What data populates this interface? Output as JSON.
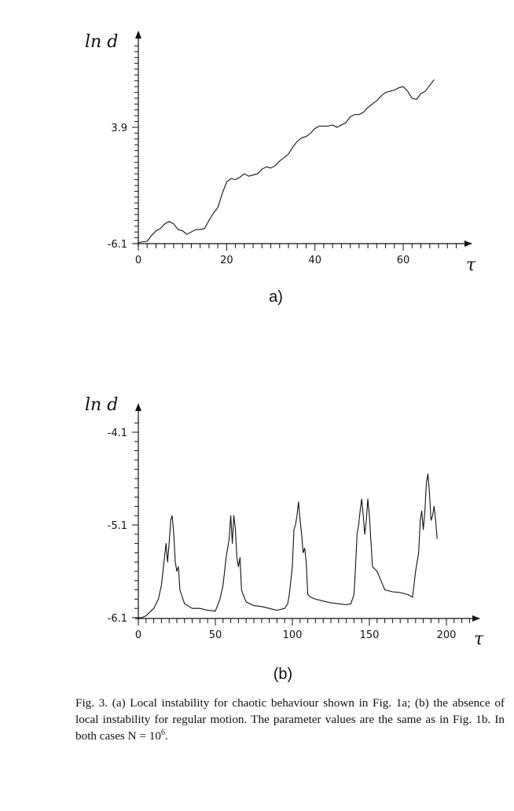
{
  "chart_data": [
    {
      "type": "line",
      "panel_label": "a)",
      "ylabel": "ln d",
      "xlabel": "τ",
      "xlim": [
        0,
        68
      ],
      "ylim": [
        -6.1,
        9.0
      ],
      "x_tick_labels": [
        "0",
        "20",
        "40",
        "60"
      ],
      "x_tick_values": [
        0,
        20,
        40,
        60
      ],
      "y_tick_labels": [
        "-6.1",
        "3.9"
      ],
      "y_tick_values": [
        -6.1,
        3.9
      ],
      "grid": false,
      "series": [
        {
          "x": [
            0,
            2,
            3,
            4,
            5,
            6,
            7,
            8,
            9,
            10,
            11,
            12,
            13,
            14,
            15,
            16,
            17,
            18,
            19,
            20,
            21,
            22,
            23,
            24,
            25,
            26,
            27,
            28,
            29,
            30,
            31,
            32,
            33,
            34,
            35,
            36,
            37,
            38,
            39,
            40,
            41,
            42,
            43,
            44,
            45,
            46,
            47,
            48,
            49,
            50,
            51,
            52,
            53,
            54,
            55,
            56,
            57,
            58,
            59,
            60,
            61,
            62,
            63,
            64,
            65,
            66,
            67
          ],
          "y": [
            -6.0,
            -5.9,
            -5.4,
            -5.0,
            -4.8,
            -4.4,
            -4.2,
            -4.4,
            -4.9,
            -5.0,
            -5.3,
            -5.1,
            -4.9,
            -4.9,
            -4.8,
            -4.1,
            -3.5,
            -3.0,
            -1.8,
            -0.8,
            -0.5,
            -0.6,
            -0.4,
            -0.1,
            -0.3,
            -0.2,
            -0.1,
            0.3,
            0.5,
            0.4,
            0.6,
            1.0,
            1.3,
            1.6,
            2.2,
            2.7,
            3.0,
            3.1,
            3.4,
            3.8,
            4.0,
            4.0,
            4.0,
            4.1,
            3.9,
            4.1,
            4.3,
            4.8,
            5.0,
            5.0,
            5.2,
            5.6,
            5.9,
            6.2,
            6.6,
            6.9,
            7.0,
            7.1,
            7.3,
            7.4,
            7.0,
            6.4,
            6.3,
            6.8,
            7.0,
            7.5,
            8.0
          ]
        }
      ]
    },
    {
      "type": "line",
      "panel_label": "(b)",
      "ylabel": "ln d",
      "xlabel": "τ",
      "xlim": [
        0,
        205
      ],
      "ylim": [
        -6.1,
        -4.0
      ],
      "x_tick_labels": [
        "0",
        "50",
        "100",
        "150",
        "200"
      ],
      "x_tick_values": [
        0,
        50,
        100,
        150,
        200
      ],
      "y_tick_labels": [
        "-4.1",
        "-5.1",
        "-6.1"
      ],
      "y_tick_values": [
        -4.1,
        -5.1,
        -6.1
      ],
      "grid": false,
      "series": [
        {
          "x": [
            0,
            2,
            5,
            10,
            13,
            15,
            17,
            18,
            19,
            20,
            21,
            22,
            23,
            24,
            25,
            26,
            27,
            28,
            30,
            35,
            40,
            45,
            50,
            53,
            55,
            57,
            59,
            60,
            61,
            62,
            63,
            64,
            65,
            66,
            67,
            68,
            70,
            75,
            80,
            85,
            90,
            95,
            97,
            98,
            100,
            101,
            102,
            103,
            104,
            105,
            106,
            107,
            108,
            109,
            110,
            112,
            115,
            120,
            125,
            130,
            135,
            138,
            140,
            141,
            142,
            143,
            144,
            145,
            146,
            147,
            148,
            149,
            150,
            152,
            155,
            160,
            165,
            170,
            175,
            178,
            180,
            182,
            183,
            184,
            185,
            186,
            187,
            188,
            189,
            190,
            191,
            192,
            193,
            194
          ],
          "y": [
            -6.1,
            -6.1,
            -6.08,
            -6.0,
            -5.9,
            -5.75,
            -5.45,
            -5.3,
            -5.5,
            -5.3,
            -5.05,
            -5.0,
            -5.2,
            -5.5,
            -5.6,
            -5.55,
            -5.8,
            -5.85,
            -5.95,
            -6.0,
            -6.0,
            -6.02,
            -6.03,
            -5.9,
            -5.75,
            -5.45,
            -5.25,
            -5.0,
            -5.3,
            -5.0,
            -5.15,
            -5.45,
            -5.55,
            -5.45,
            -5.8,
            -5.85,
            -5.93,
            -5.97,
            -5.98,
            -6.0,
            -6.02,
            -6.0,
            -5.95,
            -5.85,
            -5.55,
            -5.15,
            -5.1,
            -5.0,
            -4.85,
            -5.05,
            -5.2,
            -5.4,
            -5.35,
            -5.5,
            -5.85,
            -5.88,
            -5.9,
            -5.92,
            -5.94,
            -5.95,
            -5.96,
            -5.95,
            -5.85,
            -5.55,
            -5.2,
            -5.1,
            -4.95,
            -4.82,
            -5.0,
            -5.2,
            -5.05,
            -4.82,
            -5.0,
            -5.55,
            -5.6,
            -5.8,
            -5.82,
            -5.83,
            -5.85,
            -5.88,
            -5.6,
            -5.4,
            -5.05,
            -4.95,
            -5.15,
            -4.95,
            -4.65,
            -4.55,
            -4.75,
            -5.05,
            -5.0,
            -4.9,
            -5.05,
            -5.25
          ]
        }
      ]
    }
  ],
  "caption": {
    "text_before_sup": "Fig. 3. (a) Local instability for chaotic behaviour shown in Fig. 1a; (b) the absence of local instability for regular motion. The parameter values are the same as in Fig. 1b. In both cases N = 10",
    "sup": "6",
    "text_after_sup": "."
  }
}
